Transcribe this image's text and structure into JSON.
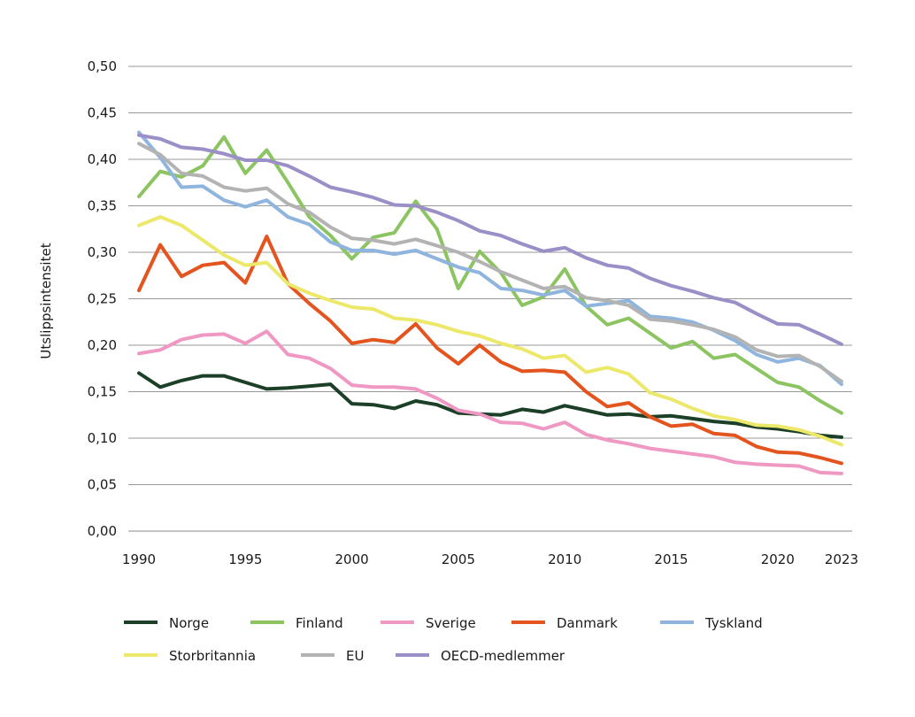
{
  "chart_data": {
    "type": "line",
    "title": "",
    "xlabel": "",
    "ylabel": "Utslippsintensitet",
    "ylim": [
      0,
      0.5
    ],
    "yticks": [
      "0,00",
      "0,05",
      "0,10",
      "0,15",
      "0,20",
      "0,25",
      "0,30",
      "0,35",
      "0,40",
      "0,45",
      "0,50"
    ],
    "xticks": [
      "1990",
      "1995",
      "2000",
      "2005",
      "2010",
      "2015",
      "2020",
      "2023"
    ],
    "grid": true,
    "legend": "bottom",
    "x": [
      1990,
      1991,
      1992,
      1993,
      1994,
      1995,
      1996,
      1997,
      1998,
      1999,
      2000,
      2001,
      2002,
      2003,
      2004,
      2005,
      2006,
      2007,
      2008,
      2009,
      2010,
      2011,
      2012,
      2013,
      2014,
      2015,
      2016,
      2017,
      2018,
      2019,
      2020,
      2021,
      2022,
      2023
    ],
    "series": [
      {
        "name": "Norge",
        "color": "#1c3f27",
        "values": [
          0.17,
          0.155,
          0.162,
          0.167,
          0.167,
          0.16,
          0.153,
          0.154,
          0.156,
          0.158,
          0.137,
          0.136,
          0.132,
          0.14,
          0.136,
          0.127,
          0.126,
          0.125,
          0.131,
          0.128,
          0.135,
          0.13,
          0.125,
          0.126,
          0.123,
          0.124,
          0.121,
          0.118,
          0.116,
          0.112,
          0.11,
          0.107,
          0.103,
          0.101
        ]
      },
      {
        "name": "Finland",
        "color": "#8cc462",
        "values": [
          0.36,
          0.387,
          0.381,
          0.393,
          0.424,
          0.385,
          0.41,
          0.375,
          0.338,
          0.318,
          0.293,
          0.316,
          0.321,
          0.355,
          0.325,
          0.261,
          0.301,
          0.278,
          0.243,
          0.252,
          0.282,
          0.242,
          0.222,
          0.229,
          0.213,
          0.197,
          0.204,
          0.186,
          0.19,
          0.175,
          0.16,
          0.155,
          0.14,
          0.127
        ]
      },
      {
        "name": "Sverige",
        "color": "#ef98c3",
        "values": [
          0.191,
          0.195,
          0.206,
          0.211,
          0.212,
          0.202,
          0.215,
          0.19,
          0.186,
          0.175,
          0.157,
          0.155,
          0.155,
          0.153,
          0.143,
          0.13,
          0.126,
          0.117,
          0.116,
          0.11,
          0.117,
          0.104,
          0.098,
          0.094,
          0.089,
          0.086,
          0.083,
          0.08,
          0.074,
          0.072,
          0.071,
          0.07,
          0.063,
          0.062
        ]
      },
      {
        "name": "Danmark",
        "color": "#e3541f",
        "values": [
          0.259,
          0.308,
          0.274,
          0.286,
          0.289,
          0.267,
          0.317,
          0.266,
          0.245,
          0.226,
          0.202,
          0.206,
          0.203,
          0.223,
          0.197,
          0.18,
          0.2,
          0.182,
          0.172,
          0.173,
          0.171,
          0.15,
          0.134,
          0.138,
          0.123,
          0.113,
          0.115,
          0.105,
          0.103,
          0.091,
          0.085,
          0.084,
          0.079,
          0.073
        ]
      },
      {
        "name": "Tyskland",
        "color": "#8fb5df",
        "values": [
          0.429,
          0.402,
          0.37,
          0.371,
          0.356,
          0.349,
          0.356,
          0.338,
          0.33,
          0.311,
          0.302,
          0.302,
          0.298,
          0.302,
          0.293,
          0.284,
          0.278,
          0.261,
          0.259,
          0.254,
          0.259,
          0.242,
          0.245,
          0.248,
          0.231,
          0.229,
          0.225,
          0.216,
          0.205,
          0.19,
          0.182,
          0.186,
          0.178,
          0.158
        ]
      },
      {
        "name": "Storbritannia",
        "color": "#ece86a",
        "values": [
          0.329,
          0.338,
          0.329,
          0.313,
          0.297,
          0.286,
          0.289,
          0.266,
          0.256,
          0.248,
          0.241,
          0.239,
          0.229,
          0.227,
          0.222,
          0.215,
          0.21,
          0.202,
          0.196,
          0.186,
          0.189,
          0.171,
          0.176,
          0.169,
          0.149,
          0.142,
          0.132,
          0.124,
          0.12,
          0.114,
          0.113,
          0.109,
          0.102,
          0.093
        ]
      },
      {
        "name": "EU",
        "color": "#b3b3b3",
        "values": [
          0.417,
          0.405,
          0.385,
          0.382,
          0.37,
          0.366,
          0.369,
          0.352,
          0.343,
          0.327,
          0.315,
          0.313,
          0.309,
          0.314,
          0.307,
          0.3,
          0.29,
          0.279,
          0.27,
          0.261,
          0.263,
          0.251,
          0.248,
          0.243,
          0.228,
          0.226,
          0.222,
          0.217,
          0.209,
          0.195,
          0.188,
          0.189,
          0.177,
          0.161
        ]
      },
      {
        "name": "OECD-medlemmer",
        "color": "#9b8fc7",
        "values": [
          0.426,
          0.422,
          0.413,
          0.411,
          0.406,
          0.399,
          0.399,
          0.393,
          0.382,
          0.37,
          0.365,
          0.359,
          0.351,
          0.35,
          0.343,
          0.334,
          0.323,
          0.318,
          0.309,
          0.301,
          0.305,
          0.294,
          0.286,
          0.283,
          0.272,
          0.264,
          0.258,
          0.251,
          0.246,
          0.234,
          0.223,
          0.222,
          0.212,
          0.201
        ]
      }
    ]
  }
}
